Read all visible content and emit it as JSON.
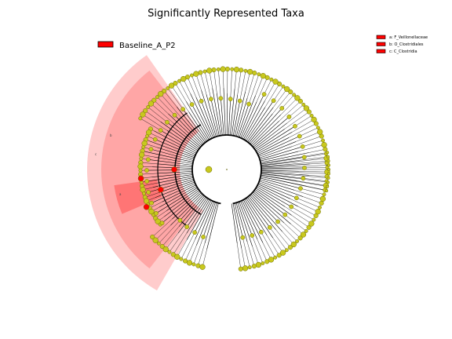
{
  "figure": {
    "title": "Significantly Represented Taxa"
  },
  "class_legend": {
    "label": "Baseline_A_P2",
    "color": "#ff0000"
  },
  "taxa_legend": [
    {
      "key": "a: F_Veillonellaceae",
      "color": "#ff0000"
    },
    {
      "key": "b: O_Clostridiales",
      "color": "#ff0000"
    },
    {
      "key": "c: C_Clostridia",
      "color": "#ff0000"
    }
  ],
  "clade_labels": [
    {
      "letter": "a"
    },
    {
      "letter": "b"
    },
    {
      "letter": "c"
    }
  ],
  "colors": {
    "node": "#c8c81e",
    "node_stroke": "#6b6b00",
    "highlight": "#ff0000",
    "highlight_soft": "#ffcccc",
    "highlight_mid": "#ff9999",
    "branch": "#000000"
  }
}
